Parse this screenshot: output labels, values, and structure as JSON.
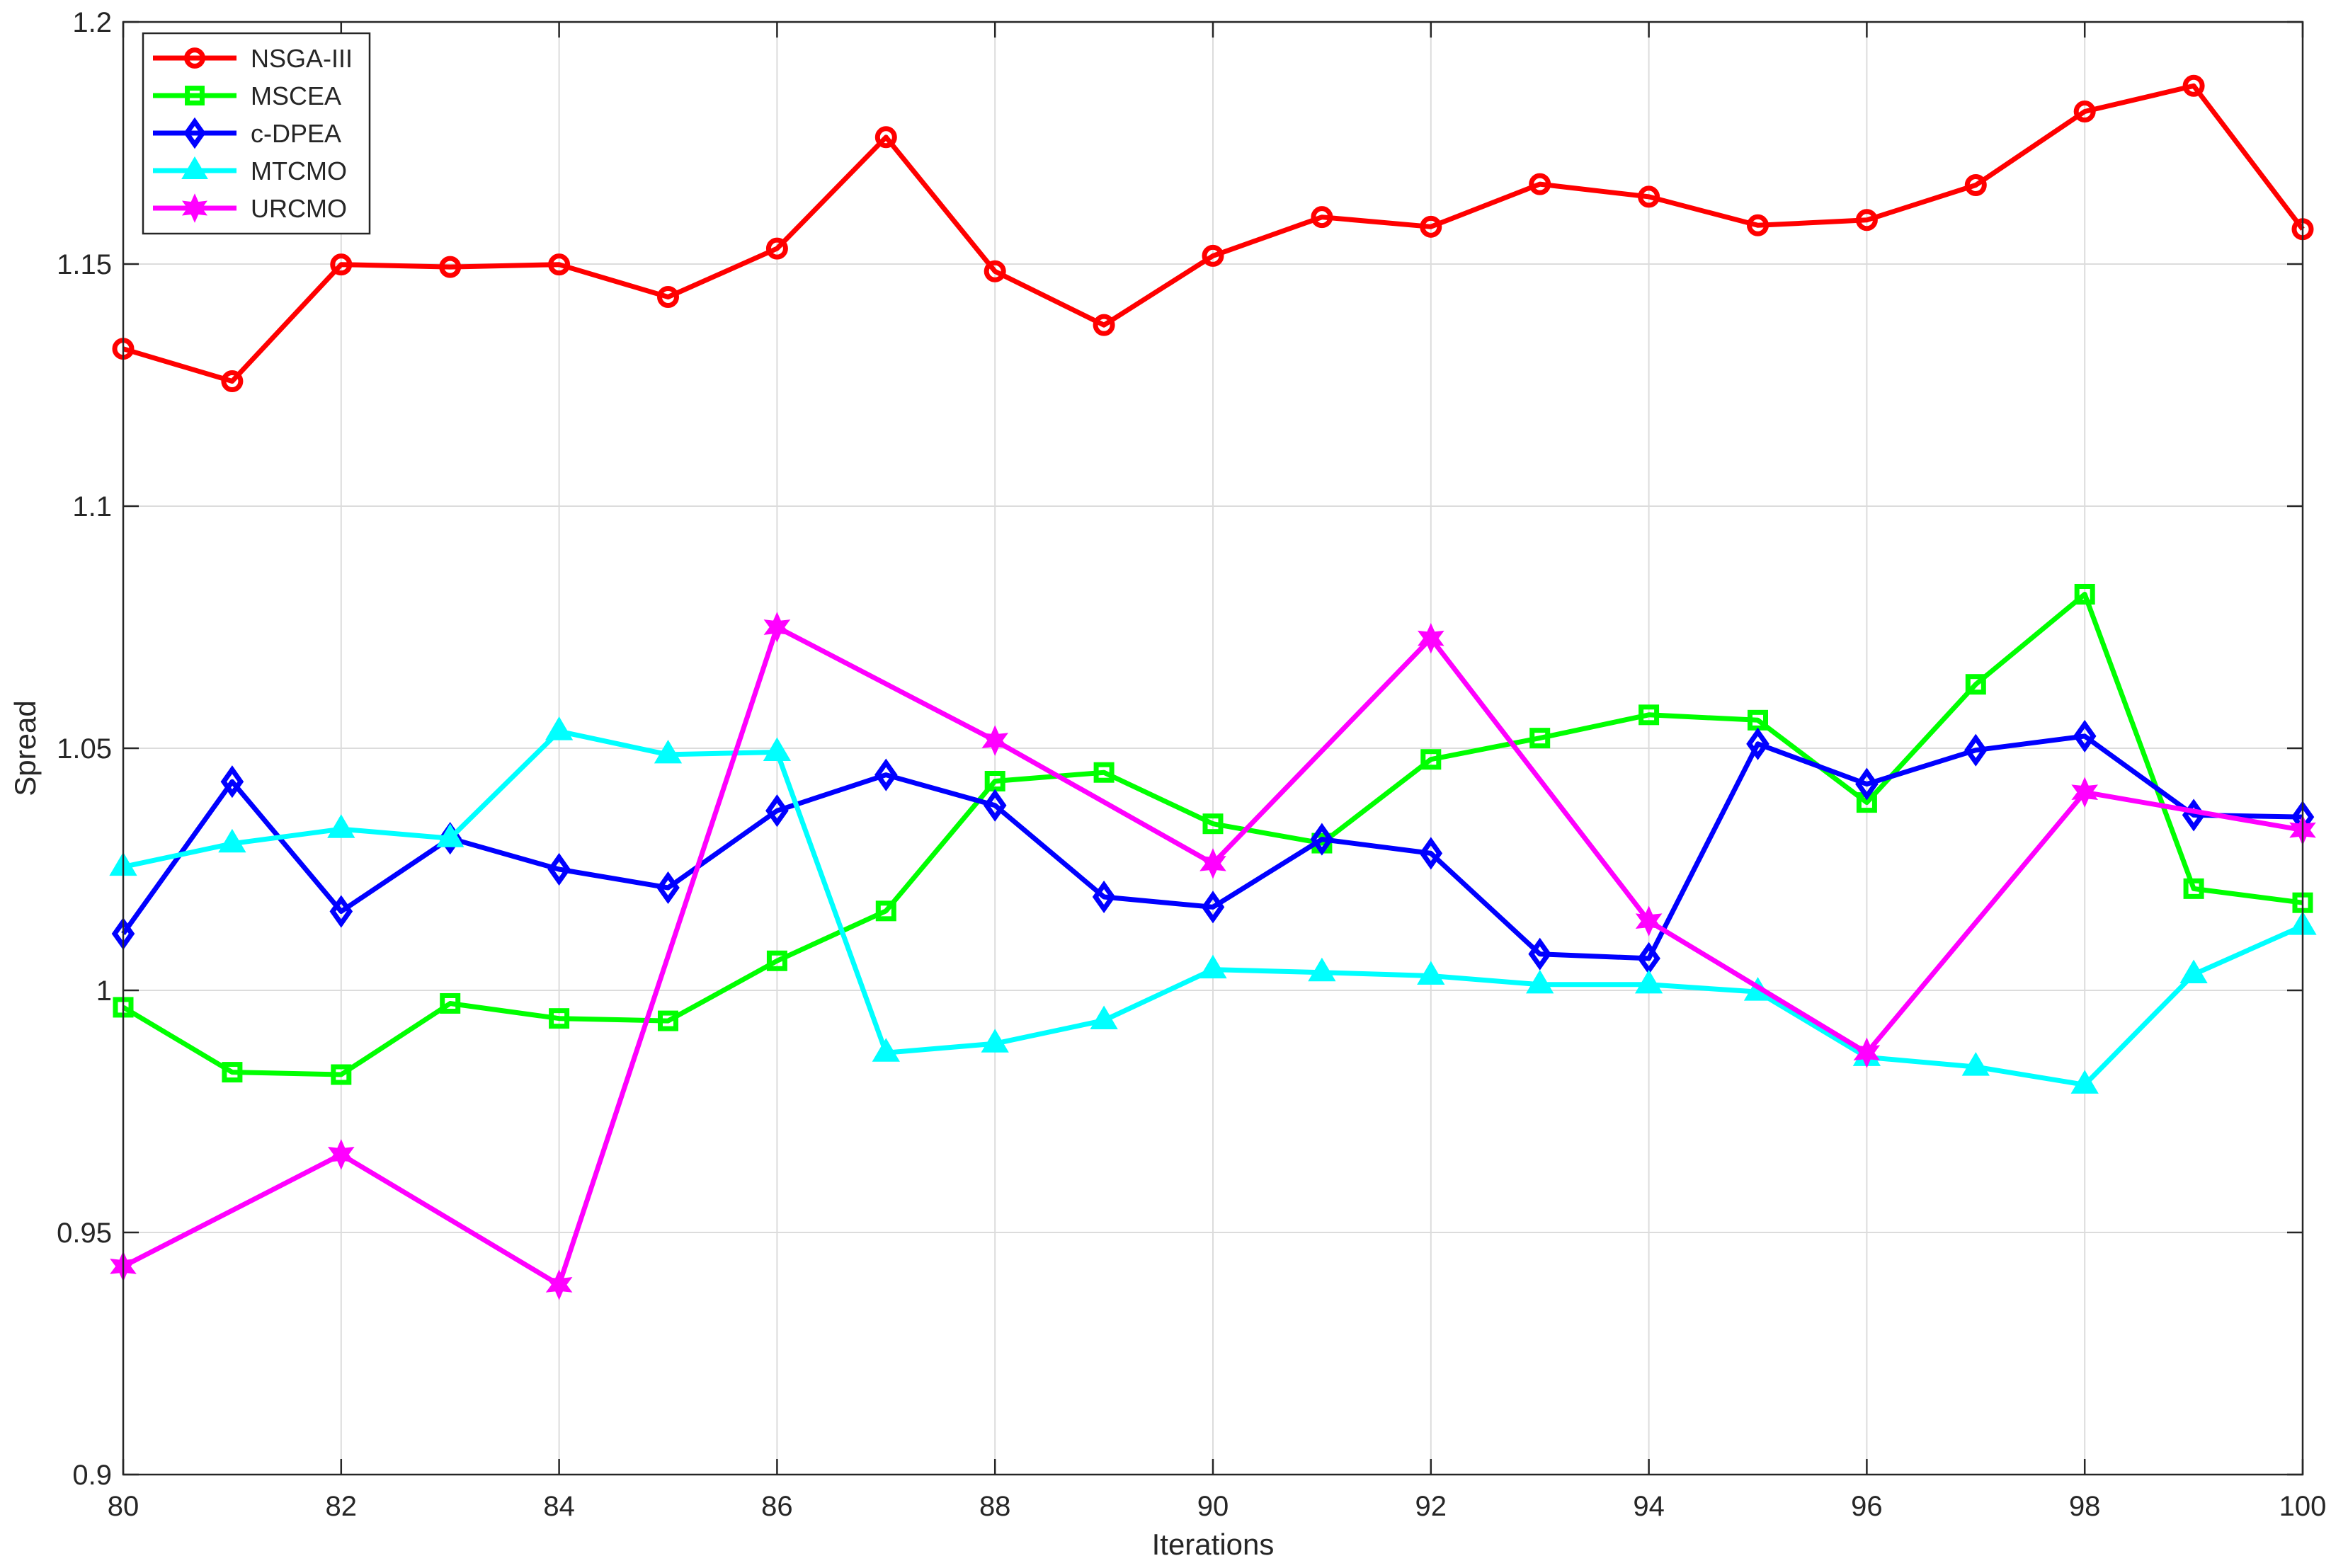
{
  "chart_data": {
    "type": "line",
    "title": "",
    "xlabel": "Iterations",
    "ylabel": "Spread",
    "xlim": [
      80,
      100
    ],
    "ylim": [
      0.9,
      1.2
    ],
    "xticks": [
      "80",
      "82",
      "84",
      "86",
      "88",
      "90",
      "92",
      "94",
      "96",
      "98",
      "100"
    ],
    "yticks": [
      "0.9",
      "0.95",
      "1",
      "1.05",
      "1.1",
      "1.15",
      "1.2"
    ],
    "grid": true,
    "legend_position": "top-left",
    "x": [
      80,
      81,
      82,
      83,
      84,
      85,
      86,
      87,
      88,
      89,
      90,
      91,
      92,
      93,
      94,
      95,
      96,
      97,
      98,
      99,
      100
    ],
    "series": [
      {
        "name": "NSGA-III",
        "color": "#ff0000",
        "marker": "circle",
        "x": [
          80,
          81,
          82,
          83,
          84,
          85,
          86,
          87,
          88,
          89,
          90,
          91,
          92,
          93,
          94,
          95,
          96,
          97,
          98,
          99,
          100
        ],
        "values": [
          1.1325,
          1.1258,
          1.1499,
          1.1494,
          1.1499,
          1.1432,
          1.1532,
          1.1762,
          1.1485,
          1.1374,
          1.1517,
          1.1597,
          1.1577,
          1.1665,
          1.1639,
          1.158,
          1.1591,
          1.1663,
          1.1815,
          1.1868,
          1.1572
        ]
      },
      {
        "name": "MSCEA",
        "color": "#00ff00",
        "marker": "square",
        "x": [
          80,
          81,
          82,
          83,
          84,
          85,
          86,
          87,
          88,
          89,
          90,
          91,
          92,
          93,
          94,
          95,
          96,
          97,
          98,
          99,
          100
        ],
        "values": [
          0.9965,
          0.9831,
          0.9826,
          0.9973,
          0.9942,
          0.9937,
          1.0061,
          1.0164,
          1.0432,
          1.045,
          1.0344,
          1.0304,
          1.0477,
          1.0521,
          1.0569,
          1.0558,
          1.0388,
          1.0632,
          1.0818,
          1.021,
          1.0181
        ]
      },
      {
        "name": "c-DPEA",
        "color": "#0000ff",
        "marker": "diamond",
        "x": [
          80,
          81,
          82,
          83,
          84,
          85,
          86,
          87,
          88,
          89,
          90,
          91,
          92,
          93,
          94,
          95,
          96,
          97,
          98,
          99,
          100
        ],
        "values": [
          1.0117,
          1.0431,
          1.0163,
          1.0314,
          1.025,
          1.0212,
          1.0371,
          1.0445,
          1.0382,
          1.0193,
          1.0172,
          1.0312,
          1.0283,
          1.0075,
          1.0066,
          1.0509,
          1.0426,
          1.0496,
          1.0525,
          1.0362,
          1.0358
        ]
      },
      {
        "name": "MTCMO",
        "color": "#00ffff",
        "marker": "triangle",
        "x": [
          80,
          81,
          82,
          83,
          84,
          85,
          86,
          87,
          88,
          89,
          90,
          91,
          92,
          93,
          94,
          95,
          96,
          97,
          98,
          99,
          100
        ],
        "values": [
          1.0255,
          1.0303,
          1.0333,
          1.0314,
          1.0535,
          1.0487,
          1.0492,
          0.9871,
          0.989,
          0.9938,
          1.0043,
          1.0037,
          1.003,
          1.0012,
          1.0012,
          0.9997,
          0.9862,
          0.9842,
          0.9805,
          1.0033,
          1.0133
        ]
      },
      {
        "name": "URCMO",
        "color": "#ff00ff",
        "marker": "hexagram",
        "x": [
          80,
          82,
          84,
          86,
          88,
          90,
          92,
          94,
          96,
          98,
          100
        ],
        "values": [
          0.943,
          0.9661,
          0.9392,
          1.075,
          1.0516,
          1.0262,
          1.0727,
          1.0143,
          0.9871,
          1.0409,
          1.0331
        ]
      }
    ]
  }
}
